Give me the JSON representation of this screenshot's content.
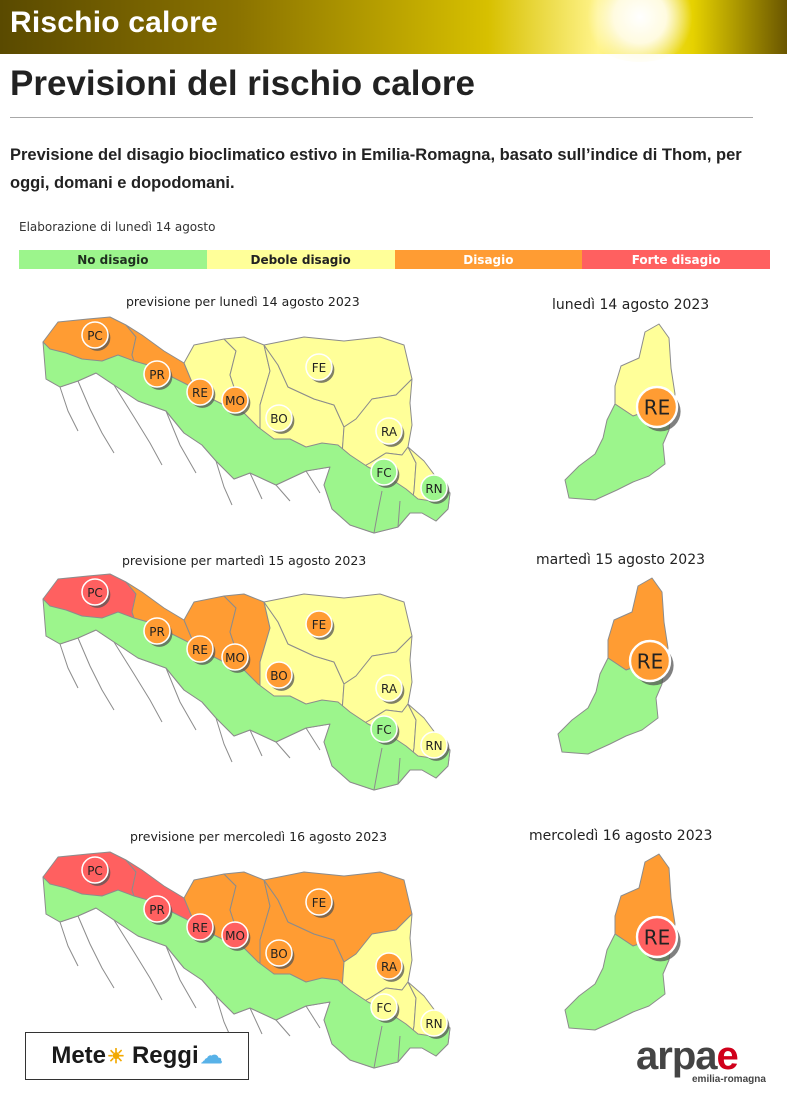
{
  "header": {
    "banner_title": "Rischio calore"
  },
  "page": {
    "title": "Previsioni del rischio calore",
    "intro": "Previsione del disagio bioclimatico estivo in Emilia-Romagna, basato sull’indice di Thom, per oggi, domani e dopodomani.",
    "elaborazione": "Elaborazione di lunedì 14 agosto"
  },
  "legend": [
    {
      "label": "No disagio",
      "color": "#9cf58c",
      "text_color": "#1f2f1f"
    },
    {
      "label": "Debole disagio",
      "color": "#ffff99",
      "text_color": "#222222"
    },
    {
      "label": "Disagio",
      "color": "#ff9c33",
      "text_color": "#ffffff"
    },
    {
      "label": "Forte disagio",
      "color": "#ff6060",
      "text_color": "#ffffff"
    }
  ],
  "colors": {
    "no": "#9cf58c",
    "debole": "#ffff99",
    "disagio": "#ff9c33",
    "forte": "#ff6060",
    "border": "#8c8c8c"
  },
  "forecasts": [
    {
      "caption": "previsione per lunedì 14 agosto 2023",
      "side_caption": "lunedì 14 agosto 2023",
      "areas": {
        "PC": "disagio",
        "PR": "disagio",
        "RE": "debole",
        "MO": "debole",
        "BO": "debole",
        "FE": "debole",
        "RA": "debole",
        "FC": "debole",
        "RN": "debole"
      },
      "markers": {
        "PC": "disagio",
        "PR": "disagio",
        "RE": "disagio",
        "MO": "disagio",
        "BO": "debole",
        "FE": "debole",
        "RA": "debole",
        "FC": "no",
        "RN": "no"
      },
      "re_zoom": {
        "plain": "debole",
        "hill": "no",
        "marker": "disagio"
      }
    },
    {
      "caption": "previsione per martedì 15 agosto 2023",
      "side_caption": "martedì 15 agosto 2023",
      "areas": {
        "PC": "forte",
        "PR": "disagio",
        "RE": "disagio",
        "MO": "disagio",
        "BO": "debole",
        "FE": "debole",
        "RA": "debole",
        "FC": "debole",
        "RN": "debole"
      },
      "markers": {
        "PC": "forte",
        "PR": "disagio",
        "RE": "disagio",
        "MO": "disagio",
        "BO": "disagio",
        "FE": "disagio",
        "RA": "debole",
        "FC": "no",
        "RN": "debole"
      },
      "re_zoom": {
        "plain": "disagio",
        "hill": "no",
        "marker": "disagio"
      }
    },
    {
      "caption": "previsione per mercoledì 16 agosto 2023",
      "side_caption": "mercoledì 16 agosto 2023",
      "areas": {
        "PC": "forte",
        "PR": "forte",
        "RE": "disagio",
        "MO": "disagio",
        "BO": "disagio",
        "FE": "disagio",
        "RA": "debole",
        "FC": "debole",
        "RN": "debole"
      },
      "markers": {
        "PC": "forte",
        "PR": "forte",
        "RE": "forte",
        "MO": "forte",
        "BO": "disagio",
        "FE": "disagio",
        "RA": "disagio",
        "FC": "debole",
        "RN": "debole"
      },
      "re_zoom": {
        "plain": "disagio",
        "hill": "no",
        "marker": "forte"
      }
    }
  ],
  "logos": {
    "meteo_left": "Mete",
    "meteo_right": "Reggi",
    "meteo_sun_icon": "sun-icon",
    "meteo_cloud_icon": "cloud-icon",
    "arpae_main": "arpa",
    "arpae_e": "e",
    "arpae_sub": "emilia-romagna"
  }
}
